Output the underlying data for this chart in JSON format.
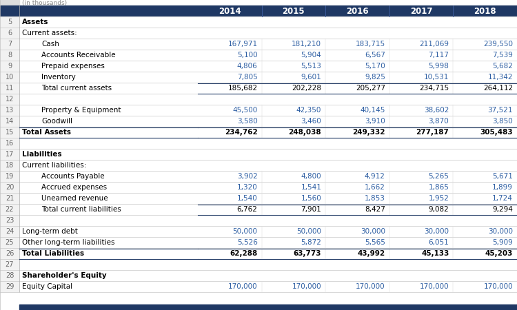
{
  "header_bg": "#1F3864",
  "header_text_color": "#FFFFFF",
  "row_num_bg": "#F2F2F2",
  "body_bg": "#FFFFFF",
  "blue_value_color": "#2E5FA3",
  "black_value_color": "#000000",
  "bold_label_color": "#000000",
  "label_color": "#000000",
  "grid_line_color": "#C8C8C8",
  "total_line_color": "#1F3864",
  "sep_line_color": "#AAAAAA",
  "years": [
    "2014",
    "2015",
    "2016",
    "2017",
    "2018"
  ],
  "rows": [
    {
      "row": 4,
      "label": "",
      "indent": 0,
      "bold": false,
      "section": false,
      "header": true,
      "values": null,
      "blue": false,
      "empty": false
    },
    {
      "row": 5,
      "label": "Assets",
      "indent": 0,
      "bold": true,
      "section": true,
      "header": false,
      "values": null,
      "blue": false,
      "empty": false
    },
    {
      "row": 6,
      "label": "Current assets:",
      "indent": 0,
      "bold": false,
      "section": false,
      "header": false,
      "values": null,
      "blue": false,
      "empty": false
    },
    {
      "row": 7,
      "label": "Cash",
      "indent": 2,
      "bold": false,
      "section": false,
      "header": false,
      "values": [
        "167,971",
        "181,210",
        "183,715",
        "211,069",
        "239,550"
      ],
      "blue": true,
      "empty": false
    },
    {
      "row": 8,
      "label": "Accounts Receivable",
      "indent": 2,
      "bold": false,
      "section": false,
      "header": false,
      "values": [
        "5,100",
        "5,904",
        "6,567",
        "7,117",
        "7,539"
      ],
      "blue": true,
      "empty": false
    },
    {
      "row": 9,
      "label": "Prepaid expenses",
      "indent": 2,
      "bold": false,
      "section": false,
      "header": false,
      "values": [
        "4,806",
        "5,513",
        "5,170",
        "5,998",
        "5,682"
      ],
      "blue": true,
      "empty": false
    },
    {
      "row": 10,
      "label": "Inventory",
      "indent": 2,
      "bold": false,
      "section": false,
      "header": false,
      "values": [
        "7,805",
        "9,601",
        "9,825",
        "10,531",
        "11,342"
      ],
      "blue": true,
      "empty": false
    },
    {
      "row": 11,
      "label": "Total current assets",
      "indent": 2,
      "bold": false,
      "section": false,
      "header": false,
      "values": [
        "185,682",
        "202,228",
        "205,277",
        "234,715",
        "264,112"
      ],
      "blue": false,
      "empty": false,
      "total": true
    },
    {
      "row": 12,
      "label": "",
      "indent": 0,
      "bold": false,
      "section": false,
      "header": false,
      "values": null,
      "blue": false,
      "empty": true
    },
    {
      "row": 13,
      "label": "Property & Equipment",
      "indent": 2,
      "bold": false,
      "section": false,
      "header": false,
      "values": [
        "45,500",
        "42,350",
        "40,145",
        "38,602",
        "37,521"
      ],
      "blue": true,
      "empty": false
    },
    {
      "row": 14,
      "label": "Goodwill",
      "indent": 2,
      "bold": false,
      "section": false,
      "header": false,
      "values": [
        "3,580",
        "3,460",
        "3,910",
        "3,870",
        "3,850"
      ],
      "blue": true,
      "empty": false
    },
    {
      "row": 15,
      "label": "Total Assets",
      "indent": 0,
      "bold": true,
      "section": false,
      "header": false,
      "values": [
        "234,762",
        "248,038",
        "249,332",
        "277,187",
        "305,483"
      ],
      "blue": false,
      "empty": false,
      "total": true,
      "total_bold": true
    },
    {
      "row": 16,
      "label": "",
      "indent": 0,
      "bold": false,
      "section": false,
      "header": false,
      "values": null,
      "blue": false,
      "empty": true
    },
    {
      "row": 17,
      "label": "Liabilities",
      "indent": 0,
      "bold": true,
      "section": true,
      "header": false,
      "values": null,
      "blue": false,
      "empty": false
    },
    {
      "row": 18,
      "label": "Current liabilities:",
      "indent": 0,
      "bold": false,
      "section": false,
      "header": false,
      "values": null,
      "blue": false,
      "empty": false
    },
    {
      "row": 19,
      "label": "Accounts Payable",
      "indent": 2,
      "bold": false,
      "section": false,
      "header": false,
      "values": [
        "3,902",
        "4,800",
        "4,912",
        "5,265",
        "5,671"
      ],
      "blue": true,
      "empty": false
    },
    {
      "row": 20,
      "label": "Accrued expenses",
      "indent": 2,
      "bold": false,
      "section": false,
      "header": false,
      "values": [
        "1,320",
        "1,541",
        "1,662",
        "1,865",
        "1,899"
      ],
      "blue": true,
      "empty": false
    },
    {
      "row": 21,
      "label": "Unearned revenue",
      "indent": 2,
      "bold": false,
      "section": false,
      "header": false,
      "values": [
        "1,540",
        "1,560",
        "1,853",
        "1,952",
        "1,724"
      ],
      "blue": true,
      "empty": false
    },
    {
      "row": 22,
      "label": "Total current liabilities",
      "indent": 2,
      "bold": false,
      "section": false,
      "header": false,
      "values": [
        "6,762",
        "7,901",
        "8,427",
        "9,082",
        "9,294"
      ],
      "blue": false,
      "empty": false,
      "total": true
    },
    {
      "row": 23,
      "label": "",
      "indent": 0,
      "bold": false,
      "section": false,
      "header": false,
      "values": null,
      "blue": false,
      "empty": true
    },
    {
      "row": 24,
      "label": "Long-term debt",
      "indent": 0,
      "bold": false,
      "section": false,
      "header": false,
      "values": [
        "50,000",
        "50,000",
        "30,000",
        "30,000",
        "30,000"
      ],
      "blue": true,
      "empty": false
    },
    {
      "row": 25,
      "label": "Other long-term liabilities",
      "indent": 0,
      "bold": false,
      "section": false,
      "header": false,
      "values": [
        "5,526",
        "5,872",
        "5,565",
        "6,051",
        "5,909"
      ],
      "blue": true,
      "empty": false
    },
    {
      "row": 26,
      "label": "Total Liabilities",
      "indent": 0,
      "bold": true,
      "section": false,
      "header": false,
      "values": [
        "62,288",
        "63,773",
        "43,992",
        "45,133",
        "45,203"
      ],
      "blue": false,
      "empty": false,
      "total": true,
      "total_bold": true
    },
    {
      "row": 27,
      "label": "",
      "indent": 0,
      "bold": false,
      "section": false,
      "header": false,
      "values": null,
      "blue": false,
      "empty": true
    },
    {
      "row": 28,
      "label": "Shareholder's Equity",
      "indent": 0,
      "bold": true,
      "section": true,
      "header": false,
      "values": null,
      "blue": false,
      "empty": false
    },
    {
      "row": 29,
      "label": "Equity Capital",
      "indent": 0,
      "bold": false,
      "section": false,
      "header": false,
      "values": [
        "170,000",
        "170,000",
        "170,000",
        "170,000",
        "170,000"
      ],
      "blue": true,
      "empty": false
    }
  ],
  "figsize": [
    7.5,
    4.5
  ],
  "dpi": 100
}
